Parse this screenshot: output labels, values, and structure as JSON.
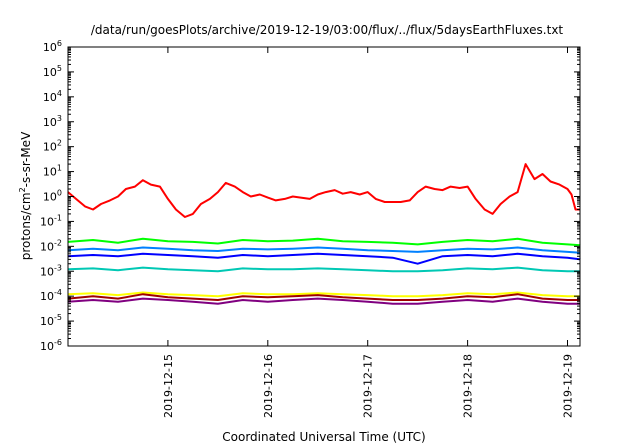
{
  "chart_data": {
    "type": "line",
    "title": "/data/run/goesPlots/archive/2019-12-19/03:00/flux/../flux/5daysEarthFluxes.txt",
    "xlabel": "Coordinated Universal Time (UTC)",
    "ylabel": {
      "prefix": "protons/cm",
      "sup": "2",
      "suffix": "-s-sr-MeV"
    },
    "yscale": "log",
    "ylim_exp": [
      -6,
      6
    ],
    "ytick_exponents": [
      -6,
      -5,
      -4,
      -3,
      -2,
      -1,
      0,
      1,
      2,
      3,
      4,
      5,
      6
    ],
    "ytick_base": "10",
    "xlim": [
      "2019-12-14 00:00",
      "2019-12-19 03:00"
    ],
    "xtick_labels": [
      "2019-12-15",
      "2019-12-16",
      "2019-12-17",
      "2019-12-18",
      "2019-12-19"
    ],
    "grid": false,
    "legend": "none",
    "series": [
      {
        "color": "#ff0000",
        "x": [
          0.0,
          0.08,
          0.17,
          0.25,
          0.33,
          0.42,
          0.5,
          0.58,
          0.67,
          0.75,
          0.83,
          0.92,
          1.0,
          1.08,
          1.17,
          1.25,
          1.33,
          1.42,
          1.5,
          1.58,
          1.67,
          1.75,
          1.83,
          1.92,
          2.0,
          2.08,
          2.17,
          2.25,
          2.33,
          2.42,
          2.5,
          2.58,
          2.67,
          2.75,
          2.83,
          2.92,
          3.0,
          3.08,
          3.17,
          3.25,
          3.33,
          3.42,
          3.5,
          3.58,
          3.67,
          3.75,
          3.83,
          3.92,
          4.0,
          4.08,
          4.17,
          4.25,
          4.33,
          4.42,
          4.5,
          4.58,
          4.67,
          4.75,
          4.83,
          4.92,
          5.0,
          5.04,
          5.08,
          5.13
        ],
        "y": [
          1.5,
          0.8,
          0.4,
          0.3,
          0.5,
          0.7,
          1.0,
          2.0,
          2.5,
          4.5,
          3.0,
          2.5,
          0.8,
          0.3,
          0.15,
          0.2,
          0.5,
          0.8,
          1.5,
          3.5,
          2.5,
          1.5,
          1.0,
          1.2,
          0.9,
          0.7,
          0.8,
          1.0,
          0.9,
          0.8,
          1.2,
          1.5,
          1.8,
          1.3,
          1.5,
          1.2,
          1.5,
          0.8,
          0.6,
          0.6,
          0.6,
          0.7,
          1.5,
          2.5,
          2.0,
          1.8,
          2.5,
          2.2,
          2.5,
          0.8,
          0.3,
          0.2,
          0.5,
          1.0,
          1.5,
          20,
          5.0,
          8.0,
          4.0,
          3.0,
          2.0,
          1.2,
          0.3,
          0.3
        ]
      },
      {
        "color": "#00ff00",
        "x": [
          0.0,
          0.25,
          0.5,
          0.75,
          1.0,
          1.25,
          1.5,
          1.75,
          2.0,
          2.25,
          2.5,
          2.75,
          3.0,
          3.25,
          3.5,
          3.75,
          4.0,
          4.25,
          4.5,
          4.75,
          5.0,
          5.13
        ],
        "y": [
          0.015,
          0.018,
          0.014,
          0.02,
          0.016,
          0.015,
          0.013,
          0.018,
          0.016,
          0.017,
          0.02,
          0.016,
          0.015,
          0.014,
          0.012,
          0.015,
          0.018,
          0.016,
          0.02,
          0.014,
          0.012,
          0.011
        ]
      },
      {
        "color": "#0080ff",
        "x": [
          0.0,
          0.25,
          0.5,
          0.75,
          1.0,
          1.25,
          1.5,
          1.75,
          2.0,
          2.25,
          2.5,
          2.75,
          3.0,
          3.25,
          3.5,
          3.75,
          4.0,
          4.25,
          4.5,
          4.75,
          5.0,
          5.13
        ],
        "y": [
          0.007,
          0.008,
          0.007,
          0.009,
          0.008,
          0.007,
          0.0065,
          0.008,
          0.0075,
          0.008,
          0.009,
          0.008,
          0.007,
          0.0065,
          0.006,
          0.007,
          0.008,
          0.0075,
          0.009,
          0.007,
          0.006,
          0.0055
        ]
      },
      {
        "color": "#0000ff",
        "x": [
          0.0,
          0.25,
          0.5,
          0.75,
          1.0,
          1.25,
          1.5,
          1.75,
          2.0,
          2.25,
          2.5,
          2.75,
          3.0,
          3.25,
          3.5,
          3.75,
          4.0,
          4.25,
          4.5,
          4.75,
          5.0,
          5.13
        ],
        "y": [
          0.004,
          0.0045,
          0.004,
          0.005,
          0.0045,
          0.004,
          0.0035,
          0.0045,
          0.004,
          0.0045,
          0.005,
          0.0045,
          0.004,
          0.0035,
          0.002,
          0.004,
          0.0045,
          0.004,
          0.005,
          0.004,
          0.0035,
          0.003
        ]
      },
      {
        "color": "#00c8b4",
        "x": [
          0.0,
          0.25,
          0.5,
          0.75,
          1.0,
          1.25,
          1.5,
          1.75,
          2.0,
          2.25,
          2.5,
          2.75,
          3.0,
          3.25,
          3.5,
          3.75,
          4.0,
          4.25,
          4.5,
          4.75,
          5.0,
          5.13
        ],
        "y": [
          0.0012,
          0.0013,
          0.0011,
          0.0014,
          0.0012,
          0.0011,
          0.001,
          0.0013,
          0.0012,
          0.0012,
          0.0013,
          0.0012,
          0.0011,
          0.001,
          0.001,
          0.0011,
          0.0013,
          0.0012,
          0.0014,
          0.0011,
          0.001,
          0.001
        ]
      },
      {
        "color": "#ffff00",
        "x": [
          0.0,
          0.25,
          0.5,
          0.75,
          1.0,
          1.25,
          1.5,
          1.75,
          2.0,
          2.25,
          2.5,
          2.75,
          3.0,
          3.25,
          3.5,
          3.75,
          4.0,
          4.25,
          4.5,
          4.75,
          5.0,
          5.13
        ],
        "y": [
          0.00012,
          0.00013,
          0.00011,
          0.00014,
          0.00012,
          0.00011,
          0.0001,
          0.00013,
          0.00012,
          0.00012,
          0.00013,
          0.00012,
          0.00011,
          0.0001,
          0.0001,
          0.00011,
          0.00013,
          0.00012,
          0.00014,
          0.00011,
          0.0001,
          0.0001
        ]
      },
      {
        "color": "#a00000",
        "x": [
          0.0,
          0.25,
          0.5,
          0.75,
          1.0,
          1.25,
          1.5,
          1.75,
          2.0,
          2.25,
          2.5,
          2.75,
          3.0,
          3.25,
          3.5,
          3.75,
          4.0,
          4.25,
          4.5,
          4.75,
          5.0,
          5.13
        ],
        "y": [
          8e-05,
          0.0001,
          8e-05,
          0.00012,
          9e-05,
          8e-05,
          7e-05,
          0.0001,
          9e-05,
          0.0001,
          0.00011,
          9e-05,
          8e-05,
          7e-05,
          7e-05,
          8e-05,
          0.0001,
          9e-05,
          0.00012,
          8e-05,
          7e-05,
          7e-05
        ]
      },
      {
        "color": "#800080",
        "x": [
          0.0,
          0.25,
          0.5,
          0.75,
          1.0,
          1.25,
          1.5,
          1.75,
          2.0,
          2.25,
          2.5,
          2.75,
          3.0,
          3.25,
          3.5,
          3.75,
          4.0,
          4.25,
          4.5,
          4.75,
          5.0,
          5.13
        ],
        "y": [
          6e-05,
          7e-05,
          6e-05,
          8e-05,
          7e-05,
          6e-05,
          5e-05,
          7e-05,
          6e-05,
          7e-05,
          8e-05,
          7e-05,
          6e-05,
          5e-05,
          5e-05,
          6e-05,
          7e-05,
          6e-05,
          8e-05,
          6e-05,
          5e-05,
          5e-05
        ]
      }
    ]
  }
}
